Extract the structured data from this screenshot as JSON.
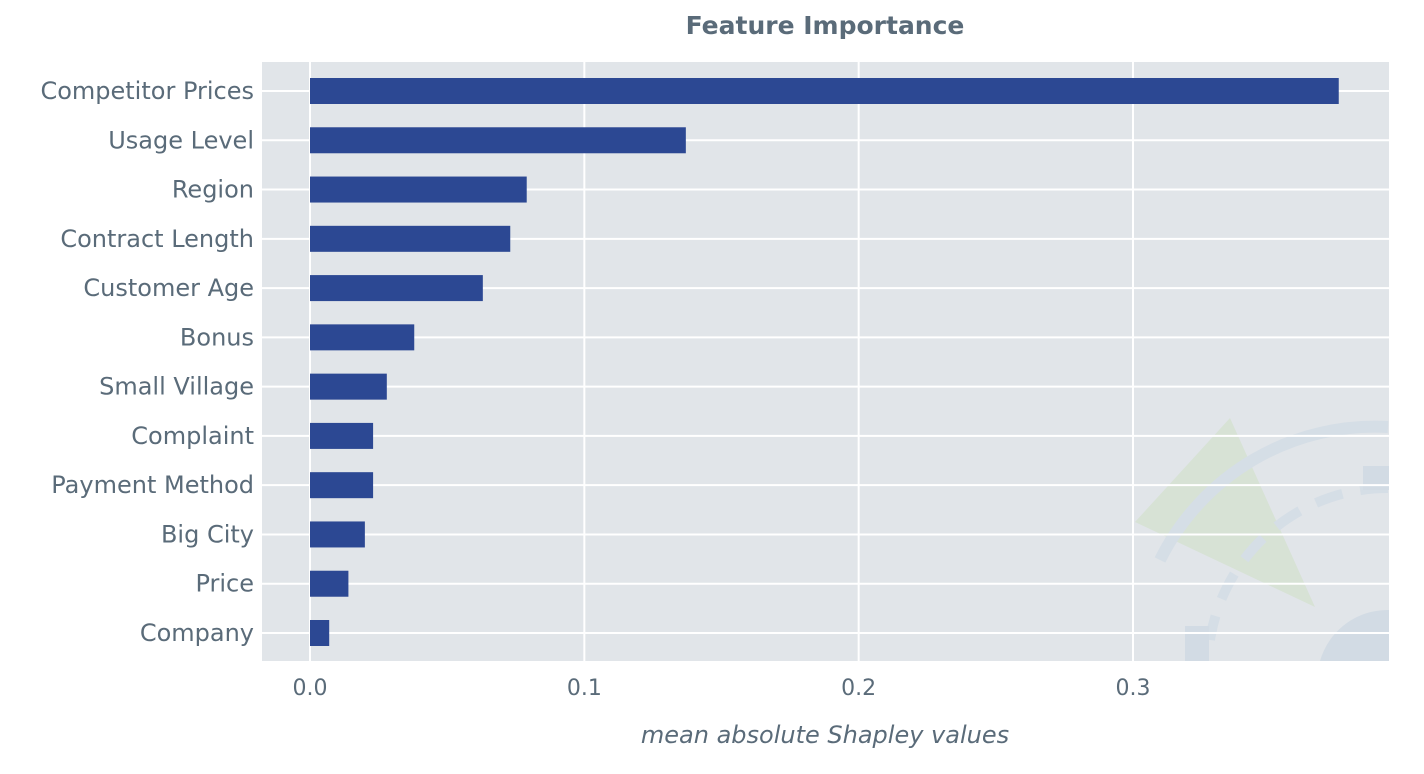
{
  "chart_data": {
    "type": "bar",
    "orientation": "horizontal",
    "title": "Feature Importance",
    "xlabel": "mean absolute Shapley values",
    "ylabel": "",
    "categories": [
      "Competitor Prices",
      "Usage Level",
      "Region",
      "Contract Length",
      "Customer Age",
      "Bonus",
      "Small Village",
      "Complaint",
      "Payment Method",
      "Big City",
      "Price",
      "Company"
    ],
    "values": [
      0.375,
      0.137,
      0.079,
      0.073,
      0.063,
      0.038,
      0.028,
      0.023,
      0.023,
      0.02,
      0.014,
      0.007
    ],
    "xlim": [
      -0.018,
      0.393
    ],
    "xticks": [
      0.0,
      0.1,
      0.2,
      0.3
    ],
    "xtick_labels": [
      "0.0",
      "0.1",
      "0.2",
      "0.3"
    ],
    "grid": true,
    "colors": {
      "bar": "#2c4893",
      "plot_background": "#e1e5e9",
      "grid": "#ffffff",
      "text": "#5a6b79"
    },
    "watermark_icon": "logo-watermark-icon"
  }
}
